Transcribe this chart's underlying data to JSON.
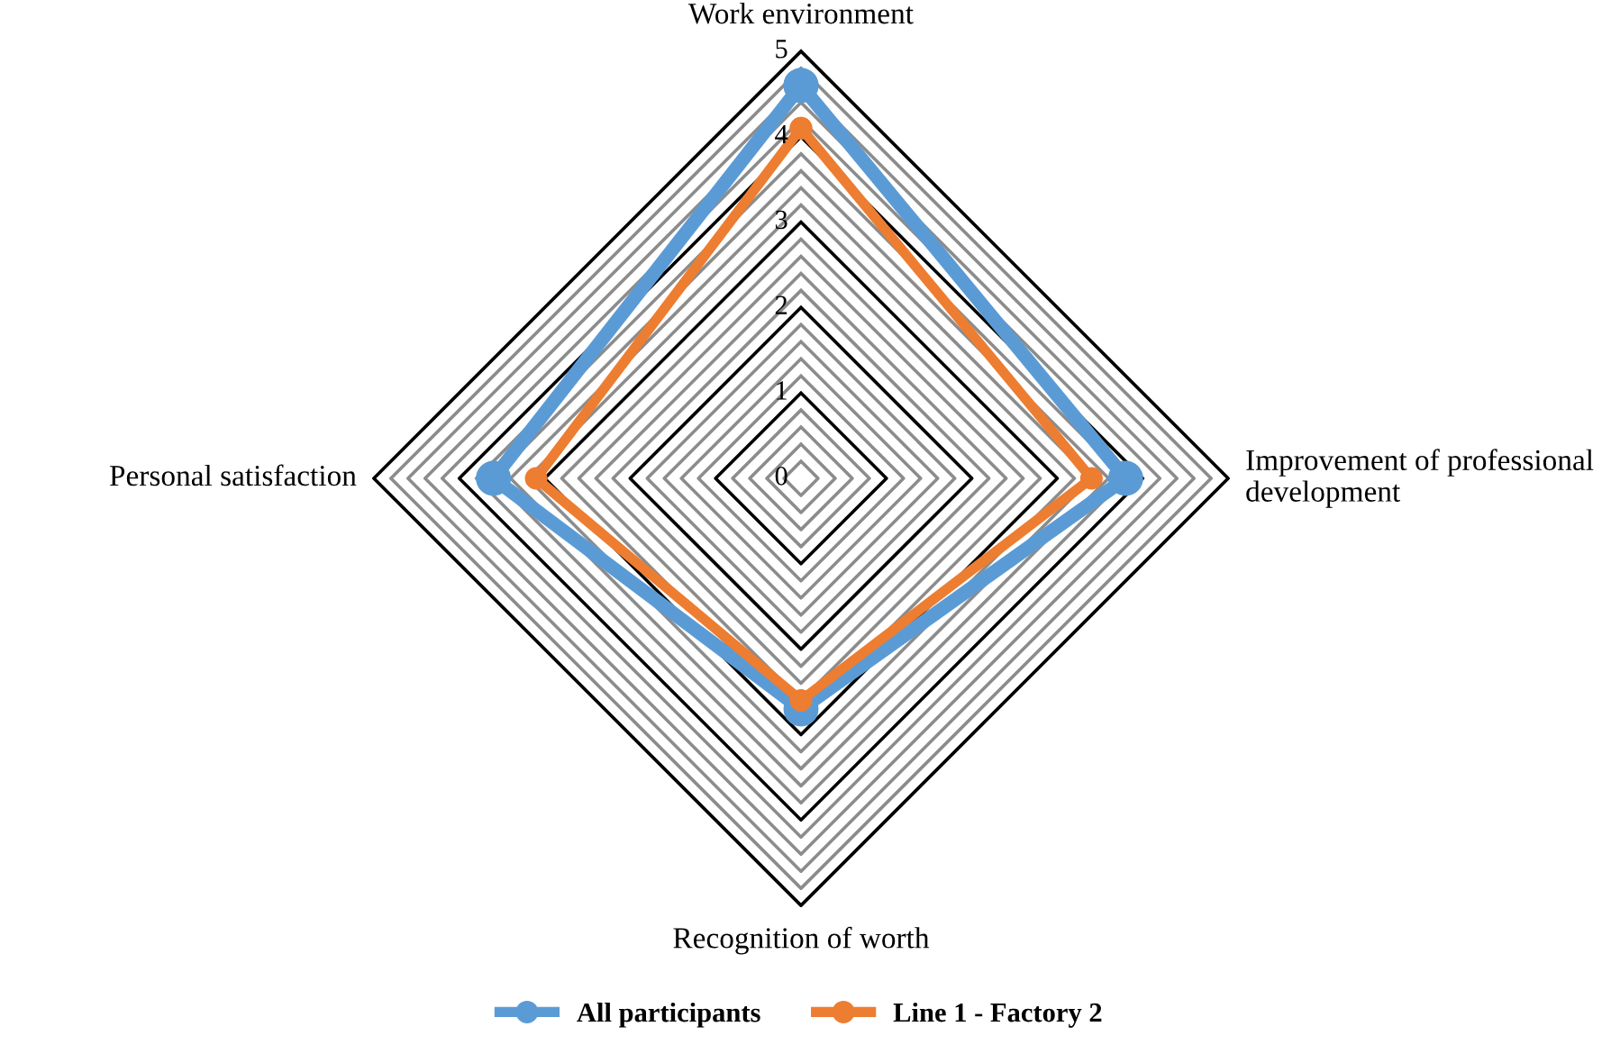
{
  "chart_data": {
    "type": "radar",
    "categories": [
      "Work environment",
      "Improvement of professional development",
      "Recognition of worth",
      "Personal satisfaction"
    ],
    "series": [
      {
        "name": "All participants",
        "color": "#5b9bd5",
        "values": [
          4.6,
          3.8,
          2.7,
          3.6
        ]
      },
      {
        "name": "Line 1 - Factory 2",
        "color": "#ed7d31",
        "values": [
          4.1,
          3.4,
          2.6,
          3.1
        ]
      }
    ],
    "ylim": [
      0,
      5
    ],
    "yticks": [
      0,
      1,
      2,
      3,
      4,
      5
    ],
    "grid": true,
    "legend": "bottom",
    "marker": "circle",
    "line_style": "solid"
  }
}
